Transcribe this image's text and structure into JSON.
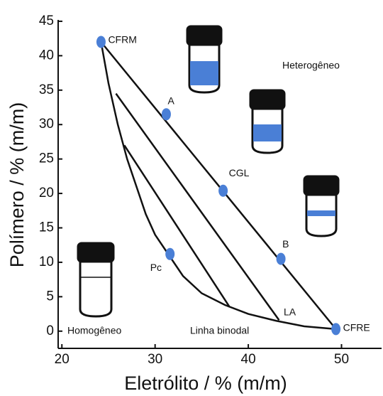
{
  "chart_data": {
    "type": "phase_diagram",
    "xlabel": "Eletrólito / % (m/m)",
    "ylabel": "Polímero / % (m/m)",
    "xlim": [
      19.6,
      54.3
    ],
    "ylim": [
      -2.5,
      45.2
    ],
    "xticks": [
      20,
      30,
      40,
      50
    ],
    "yticks": [
      0,
      5,
      10,
      15,
      20,
      25,
      30,
      35,
      40,
      45
    ],
    "binodal": {
      "x": [
        24.2,
        25,
        26,
        27,
        28,
        29,
        30,
        31.5,
        33,
        35,
        37.5,
        40,
        43,
        46,
        49.4
      ],
      "y": [
        42,
        36,
        30,
        25,
        21,
        17,
        14,
        11,
        8,
        5.5,
        3.8,
        2.5,
        1.5,
        0.7,
        0.3
      ]
    },
    "tie_lines": [
      {
        "x": [
          24.2,
          49.4
        ],
        "y": [
          42,
          0.3
        ]
      },
      {
        "x": [
          25.8,
          43.3
        ],
        "y": [
          34.5,
          1.6
        ]
      },
      {
        "x": [
          26.7,
          38
        ],
        "y": [
          27,
          3.5
        ]
      }
    ],
    "points": {
      "labels": [
        "CFRM",
        "A",
        "CGL",
        "B",
        "CFRE",
        "Pc"
      ],
      "x": [
        24.2,
        31.2,
        37.3,
        43.5,
        49.4,
        31.6
      ],
      "y": [
        42,
        31.5,
        20.4,
        10.5,
        0.3,
        11.2
      ],
      "color": "#4a7fd6"
    },
    "annotations": [
      "Heterogêneo",
      "Homogêneo",
      "Linha binodal",
      "LA"
    ]
  }
}
